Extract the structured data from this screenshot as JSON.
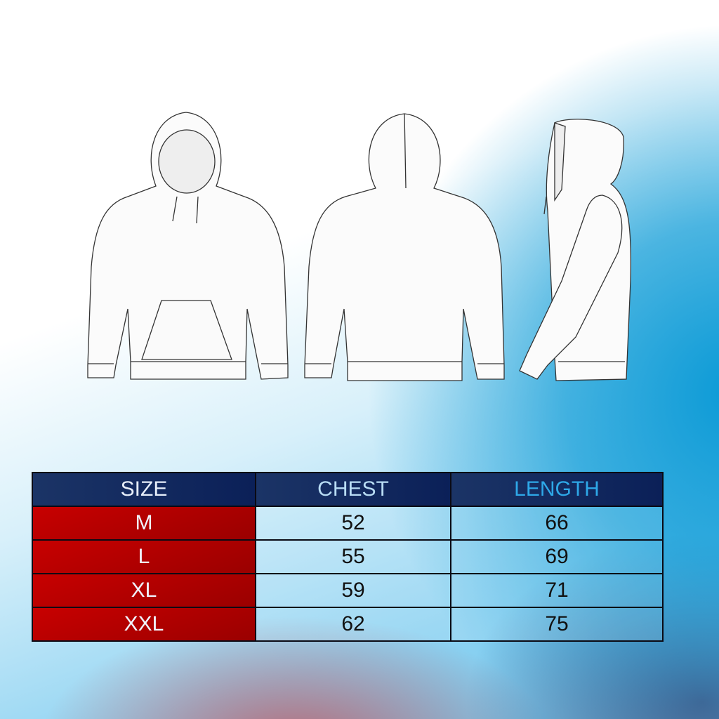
{
  "illustration": {
    "views": [
      "front",
      "back",
      "side"
    ],
    "garment-icon": "hoodie-outline"
  },
  "table": {
    "headers": [
      "SIZE",
      "CHEST",
      "LENGTH"
    ],
    "rows": [
      {
        "size": "M",
        "chest": "52",
        "length": "66"
      },
      {
        "size": "L",
        "chest": "55",
        "length": "69"
      },
      {
        "size": "XL",
        "chest": "59",
        "length": "71"
      },
      {
        "size": "XXL",
        "chest": "62",
        "length": "75"
      }
    ]
  },
  "colors": {
    "header": "#15306a",
    "size_column": "#b00000",
    "background_accent": "#0b9ad6"
  }
}
